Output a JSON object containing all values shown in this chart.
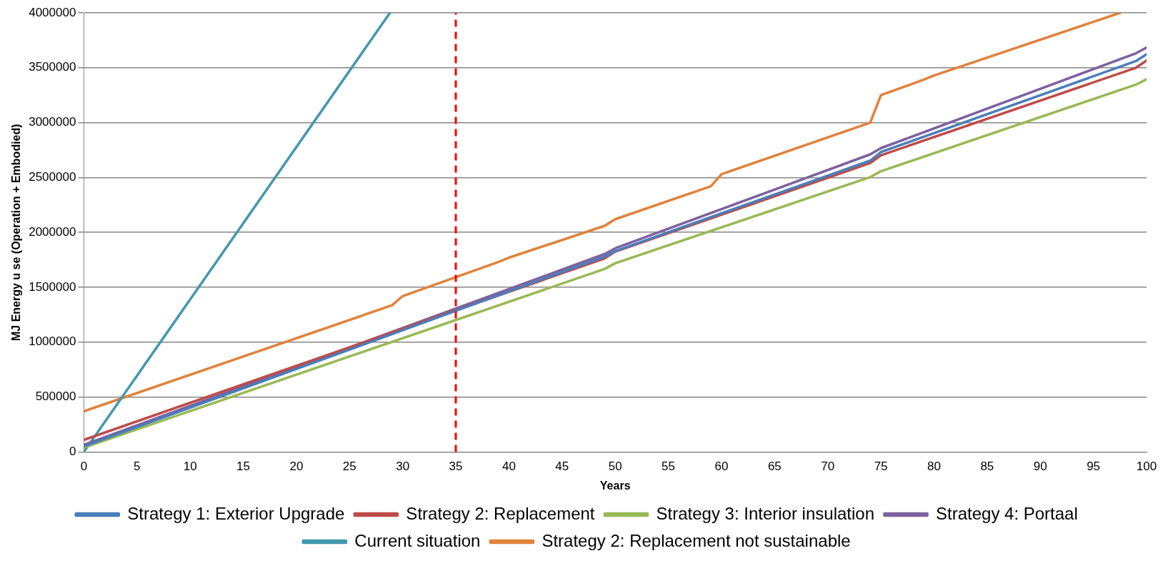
{
  "chart_data": {
    "type": "line",
    "xlabel": "Years",
    "ylabel": "MJ Energy u se (Operation + Embodied)",
    "xlim": [
      0,
      100
    ],
    "xticks": [
      0,
      5,
      10,
      15,
      20,
      25,
      30,
      35,
      40,
      45,
      50,
      55,
      60,
      65,
      70,
      75,
      80,
      85,
      90,
      95,
      100
    ],
    "ylim": [
      0,
      4000000
    ],
    "yticks": [
      0,
      500000,
      1000000,
      1500000,
      2000000,
      2500000,
      3000000,
      3500000,
      4000000
    ],
    "grid": "y",
    "legend": "bottom",
    "marker": "none",
    "line_style": "solid",
    "ref_lines": [
      {
        "axis": "x",
        "value": 35,
        "color": "#ff0000",
        "line_style": "dashed"
      }
    ],
    "series": [
      {
        "name": "Strategy 1: Exterior Upgrade",
        "color": "#4a7ebb",
        "x": [
          0,
          49,
          50,
          74,
          75,
          99,
          100
        ],
        "values": [
          50000,
          1780000,
          1830000,
          2654000,
          2732000,
          3561000,
          3623000
        ]
      },
      {
        "name": "Strategy 2: Replacement",
        "color": "#be4b48",
        "x": [
          0,
          49,
          50,
          74,
          75,
          99,
          100
        ],
        "values": [
          110000,
          1763000,
          1825000,
          2632000,
          2702000,
          3500000,
          3566000
        ]
      },
      {
        "name": "Strategy 3: Interior insulation",
        "color": "#98b954",
        "x": [
          0,
          49,
          50,
          74,
          75,
          99,
          100
        ],
        "values": [
          40000,
          1667000,
          1719000,
          2504000,
          2557000,
          3346000,
          3395000
        ]
      },
      {
        "name": "Strategy 4: Portaal",
        "color": "#7d60a0",
        "x": [
          0,
          49,
          50,
          74,
          75,
          99,
          100
        ],
        "values": [
          65000,
          1803000,
          1855000,
          2711000,
          2768000,
          3632000,
          3684000
        ]
      },
      {
        "name": "Current situation",
        "color": "#4198af",
        "x": [
          0,
          28.8
        ],
        "values": [
          0,
          4000000
        ]
      },
      {
        "name": "Strategy 2: Replacement not sustainable",
        "color": "#e0823b",
        "x": [
          0,
          29,
          30,
          39,
          40,
          49,
          50,
          59,
          60,
          74,
          75,
          79,
          80,
          97.5
        ],
        "values": [
          370000,
          1336000,
          1420000,
          1730000,
          1770000,
          2060000,
          2120000,
          2420000,
          2530000,
          3000000,
          3250000,
          3390000,
          3430000,
          4000000
        ]
      }
    ]
  }
}
